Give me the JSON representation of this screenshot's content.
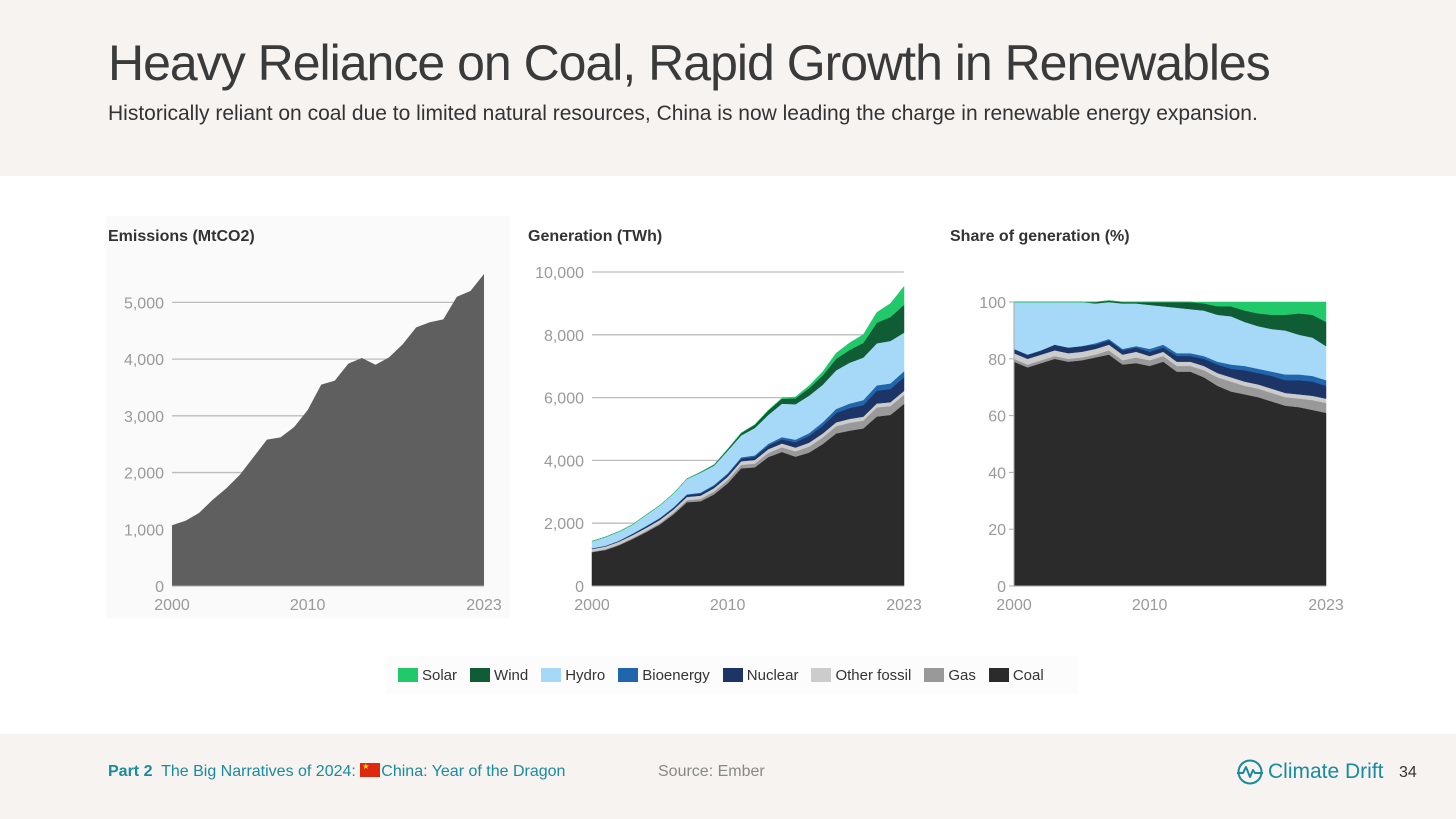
{
  "header": {
    "title": "Heavy Reliance on Coal, Rapid Growth in Renewables",
    "subtitle": "Historically reliant on coal due to limited natural resources, China is now leading the charge in renewable energy expansion."
  },
  "colors": {
    "Solar": "#21c96a",
    "Wind": "#0f5c35",
    "Hydro": "#a6d9f7",
    "Bioenergy": "#2166ac",
    "Nuclear": "#1c3566",
    "Other fossil": "#cccccc",
    "Gas": "#999999",
    "Coal": "#2b2b2b",
    "Emissions": "#5f5f5f"
  },
  "legend": [
    "Solar",
    "Wind",
    "Hydro",
    "Bioenergy",
    "Nuclear",
    "Other fossil",
    "Gas",
    "Coal"
  ],
  "chart_data": [
    {
      "type": "area",
      "title": "Emissions (MtCO2)",
      "x": [
        2000,
        2001,
        2002,
        2003,
        2004,
        2005,
        2006,
        2007,
        2008,
        2009,
        2010,
        2011,
        2012,
        2013,
        2014,
        2015,
        2016,
        2017,
        2018,
        2019,
        2020,
        2021,
        2022,
        2023
      ],
      "series": [
        {
          "values": [
            1070,
            1150,
            1290,
            1520,
            1720,
            1960,
            2270,
            2580,
            2620,
            2800,
            3100,
            3550,
            3620,
            3920,
            4020,
            3900,
            4030,
            4260,
            4560,
            4650,
            4700,
            5100,
            5200,
            5500
          ]
        }
      ],
      "ylim": [
        0,
        5500
      ],
      "yticks": [
        0,
        1000,
        2000,
        3000,
        4000,
        5000
      ],
      "ytick_labels": [
        "0",
        "1,000",
        "2,000",
        "3,000",
        "4,000",
        "5,000"
      ],
      "xtick_labels": [
        "2000",
        "2010",
        "2023"
      ],
      "grid": true
    },
    {
      "type": "area",
      "title": "Generation (TWh)",
      "x": [
        2000,
        2001,
        2002,
        2003,
        2004,
        2005,
        2006,
        2007,
        2008,
        2009,
        2010,
        2011,
        2012,
        2013,
        2014,
        2015,
        2016,
        2017,
        2018,
        2019,
        2020,
        2021,
        2022,
        2023
      ],
      "stacking": "stacked",
      "series": [
        {
          "name": "Coal",
          "values": [
            1080,
            1150,
            1300,
            1500,
            1720,
            1960,
            2280,
            2670,
            2700,
            2920,
            3270,
            3750,
            3780,
            4110,
            4270,
            4120,
            4250,
            4520,
            4860,
            4950,
            5020,
            5400,
            5450,
            5800
          ]
        },
        {
          "name": "Gas",
          "values": [
            20,
            25,
            30,
            35,
            40,
            45,
            55,
            65,
            75,
            90,
            100,
            110,
            120,
            130,
            150,
            170,
            190,
            210,
            230,
            250,
            250,
            290,
            280,
            290
          ]
        },
        {
          "name": "Other fossil",
          "values": [
            80,
            85,
            85,
            90,
            95,
            100,
            100,
            105,
            105,
            110,
            110,
            115,
            115,
            120,
            120,
            120,
            125,
            125,
            125,
            125,
            125,
            125,
            125,
            125
          ]
        },
        {
          "name": "Nuclear",
          "values": [
            20,
            20,
            25,
            40,
            50,
            53,
            55,
            62,
            68,
            70,
            74,
            86,
            97,
            112,
            133,
            171,
            213,
            248,
            295,
            348,
            366,
            407,
            418,
            435
          ]
        },
        {
          "name": "Bioenergy",
          "values": [
            3,
            4,
            5,
            6,
            8,
            10,
            15,
            20,
            25,
            30,
            35,
            40,
            50,
            60,
            70,
            80,
            90,
            110,
            130,
            140,
            160,
            170,
            180,
            190
          ]
        },
        {
          "name": "Hydro",
          "values": [
            222,
            278,
            288,
            284,
            354,
            397,
            435,
            486,
            639,
            616,
            722,
            698,
            872,
            920,
            1064,
            1130,
            1193,
            1194,
            1232,
            1302,
            1355,
            1340,
            1352,
            1229
          ]
        },
        {
          "name": "Wind",
          "values": [
            1,
            1,
            2,
            2,
            2,
            2,
            4,
            6,
            13,
            27,
            45,
            74,
            100,
            141,
            156,
            186,
            241,
            295,
            366,
            406,
            467,
            656,
            763,
            886
          ]
        },
        {
          "name": "Solar",
          "values": [
            0,
            0,
            0,
            0,
            0,
            0,
            0,
            0,
            0,
            0,
            1,
            3,
            4,
            8,
            24,
            45,
            75,
            118,
            178,
            225,
            261,
            327,
            427,
            584
          ]
        }
      ],
      "ylim": [
        0,
        10000
      ],
      "yticks": [
        0,
        2000,
        4000,
        6000,
        8000,
        10000
      ],
      "ytick_labels": [
        "0",
        "2,000",
        "4,000",
        "6,000",
        "8,000",
        "10,000"
      ],
      "xtick_labels": [
        "2000",
        "2010",
        "2023"
      ],
      "grid": true
    },
    {
      "type": "area",
      "title": "Share of generation (%)",
      "x": [
        2000,
        2001,
        2002,
        2003,
        2004,
        2005,
        2006,
        2007,
        2008,
        2009,
        2010,
        2011,
        2012,
        2013,
        2014,
        2015,
        2016,
        2017,
        2018,
        2019,
        2020,
        2021,
        2022,
        2023
      ],
      "stacking": "stacked-percent",
      "series": [
        {
          "name": "Coal",
          "values": [
            79,
            77,
            78.5,
            80,
            79,
            79.5,
            80.5,
            81.5,
            78,
            78.5,
            77.5,
            79,
            75.5,
            75.5,
            73.5,
            70.5,
            68.5,
            67.5,
            66.5,
            65,
            63.5,
            63,
            62,
            61
          ]
        },
        {
          "name": "Gas",
          "values": [
            1,
            1,
            1,
            1,
            1,
            1,
            1,
            1.5,
            1.5,
            2,
            2,
            2,
            2,
            2,
            2.5,
            3,
            3.5,
            3,
            3,
            3,
            3,
            3,
            3.5,
            3.5
          ]
        },
        {
          "name": "Other fossil",
          "values": [
            2,
            2,
            2,
            2,
            2,
            2,
            2,
            2,
            2,
            2,
            1.5,
            1.5,
            1.5,
            1.5,
            1.5,
            1.5,
            1.5,
            1.5,
            1.5,
            1.5,
            1.5,
            1.5,
            1.5,
            1.5
          ]
        },
        {
          "name": "Nuclear",
          "values": [
            1.5,
            1.5,
            1.5,
            2,
            2,
            2,
            1.5,
            1.5,
            1.5,
            1.5,
            1.5,
            1.5,
            2,
            2,
            2.5,
            3,
            3,
            4,
            4,
            4.5,
            4.5,
            5,
            5,
            4.5
          ]
        },
        {
          "name": "Bioenergy",
          "values": [
            0,
            0,
            0,
            0,
            0,
            0,
            0.5,
            0.5,
            0.5,
            0.5,
            1,
            1,
            1,
            1,
            1,
            1,
            1.5,
            1.5,
            1.5,
            1.5,
            2,
            2,
            2,
            2
          ]
        },
        {
          "name": "Hydro",
          "values": [
            16.5,
            18.5,
            17,
            15,
            16,
            15.5,
            14,
            13,
            16,
            15,
            15.5,
            13.5,
            16,
            15.5,
            16,
            16.5,
            17,
            15.5,
            15,
            15,
            15.5,
            14,
            13.5,
            12
          ]
        },
        {
          "name": "Wind",
          "values": [
            0,
            0,
            0,
            0,
            0,
            0,
            0.5,
            0.5,
            0.5,
            0.5,
            1,
            1.5,
            2,
            2.5,
            2.5,
            3,
            3.5,
            4,
            4.5,
            5,
            5.5,
            7.5,
            8,
            8.5
          ]
        },
        {
          "name": "Solar",
          "values": [
            0,
            0,
            0,
            0,
            0,
            0,
            0,
            0,
            0,
            0,
            0,
            0,
            0,
            0,
            0.5,
            1.5,
            1.5,
            3,
            4,
            4.5,
            4.5,
            4,
            4.5,
            7
          ]
        }
      ],
      "ylim": [
        0,
        100
      ],
      "yticks": [
        0,
        20,
        40,
        60,
        80,
        100
      ],
      "ytick_labels": [
        "0",
        "20",
        "40",
        "60",
        "80",
        "100"
      ],
      "xtick_labels": [
        "2000",
        "2010",
        "2023"
      ],
      "grid": false
    }
  ],
  "footer": {
    "part_label": "Part 2",
    "part_text": "The Big Narratives of 2024: ",
    "chapter": "China: Year of the Dragon",
    "source": "Source: Ember",
    "brand": "Climate Drift",
    "page_number": "34"
  }
}
